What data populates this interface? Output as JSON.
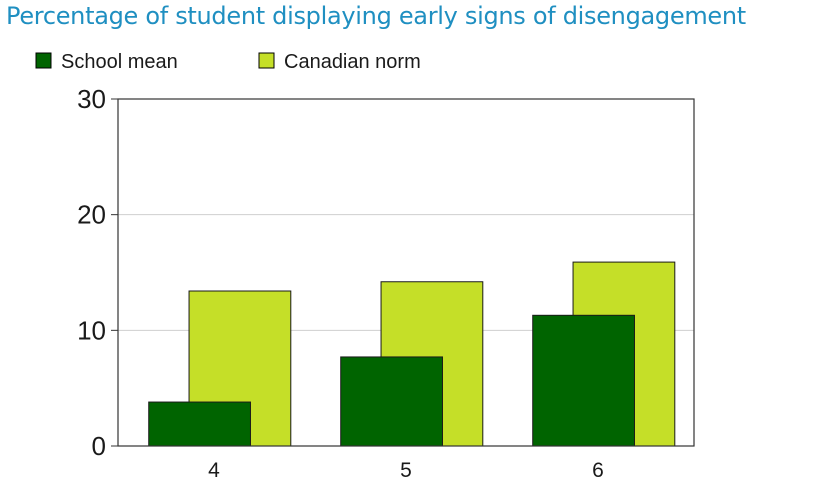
{
  "title": "Percentage of student displaying early signs of disengagement",
  "chart_data": {
    "type": "bar",
    "title": "Percentage of student displaying early signs of disengagement",
    "categories": [
      "4",
      "5",
      "6"
    ],
    "series": [
      {
        "name": "School mean",
        "values": [
          3.8,
          7.7,
          11.3
        ],
        "color": "#006400"
      },
      {
        "name": "Canadian norm",
        "values": [
          13.4,
          14.2,
          15.9
        ],
        "color": "#c5df28"
      }
    ],
    "ylim": [
      0,
      30
    ],
    "yticks": [
      "0",
      "10",
      "20",
      "30"
    ],
    "xlabel": "",
    "ylabel": "",
    "grid": true,
    "legend": "top-left"
  }
}
